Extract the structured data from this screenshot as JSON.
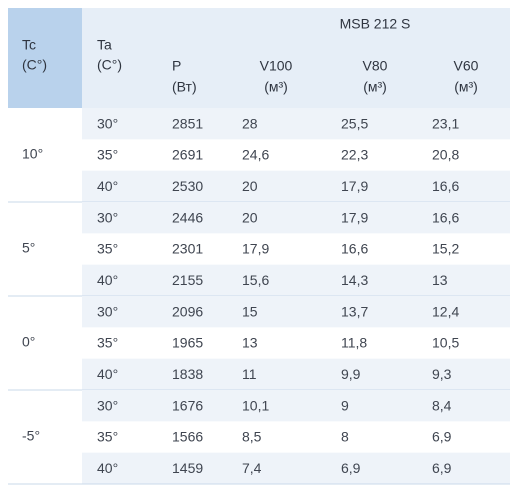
{
  "header": {
    "group_title": "MSB 212 S",
    "columns": [
      [
        "Tc",
        "(C°)"
      ],
      [
        "Ta",
        "(C°)"
      ],
      [
        "P",
        "(Вт)"
      ],
      [
        "V100",
        "(м³)"
      ],
      [
        "V80",
        "(м³)"
      ],
      [
        "V60",
        "(м³)"
      ]
    ]
  },
  "groups": [
    {
      "tc": "10°",
      "rows": [
        [
          "30°",
          "2851",
          "28",
          "25,5",
          "23,1"
        ],
        [
          "35°",
          "2691",
          "24,6",
          "22,3",
          "20,8"
        ],
        [
          "40°",
          "2530",
          "20",
          "17,9",
          "16,6"
        ]
      ]
    },
    {
      "tc": "5°",
      "rows": [
        [
          "30°",
          "2446",
          "20",
          "17,9",
          "16,6"
        ],
        [
          "35°",
          "2301",
          "17,9",
          "16,6",
          "15,2"
        ],
        [
          "40°",
          "2155",
          "15,6",
          "14,3",
          "13"
        ]
      ]
    },
    {
      "tc": "0°",
      "rows": [
        [
          "30°",
          "2096",
          "15",
          "13,7",
          "12,4"
        ],
        [
          "35°",
          "1965",
          "13",
          "11,8",
          "10,5"
        ],
        [
          "40°",
          "1838",
          "11",
          "9,9",
          "9,3"
        ]
      ]
    },
    {
      "tc": "-5°",
      "rows": [
        [
          "30°",
          "1676",
          "10,1",
          "9",
          "8,4"
        ],
        [
          "35°",
          "1566",
          "8,5",
          "8",
          "6,9"
        ],
        [
          "40°",
          "1459",
          "7,4",
          "6,9",
          "6,9"
        ]
      ]
    }
  ]
}
